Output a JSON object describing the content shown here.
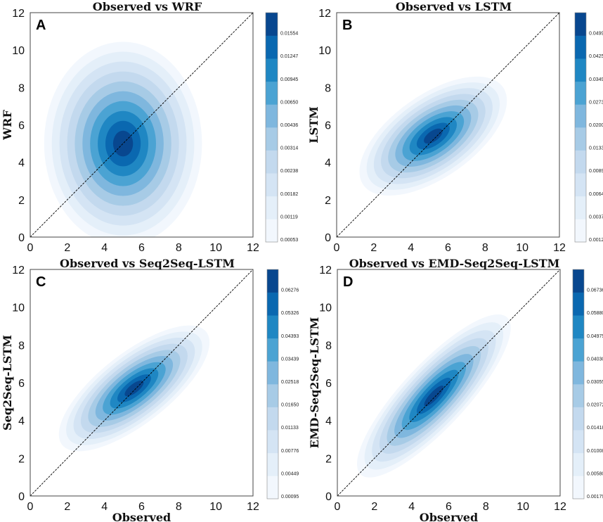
{
  "chart_data": [
    {
      "type": "heatmap",
      "letter": "A",
      "title": "Observed vs WRF",
      "xlabel": "",
      "ylabel": "WRF",
      "xlim": [
        0,
        12
      ],
      "ylim": [
        0,
        12
      ],
      "xticks": [
        "0",
        "2",
        "4",
        "6",
        "8",
        "10",
        "12"
      ],
      "yticks": [
        "0",
        "2",
        "4",
        "6",
        "8",
        "10",
        "12"
      ],
      "reference_line": "y = x",
      "density_center": [
        5.0,
        5.0
      ],
      "density_spread": [
        1.25,
        1.6
      ],
      "density_rotation_deg": 0,
      "colorbar_levels": [
        "0.00053",
        "0.00119",
        "0.00182",
        "0.00238",
        "0.00314",
        "0.00436",
        "0.00650",
        "0.00945",
        "0.01247",
        "0.01554"
      ]
    },
    {
      "type": "heatmap",
      "letter": "B",
      "title": "Observed vs LSTM",
      "xlabel": "",
      "ylabel": "LSTM",
      "xlim": [
        0,
        12
      ],
      "ylim": [
        0,
        12
      ],
      "xticks": [
        "0",
        "2",
        "4",
        "6",
        "8",
        "10",
        "12"
      ],
      "yticks": [
        "0",
        "2",
        "4",
        "6",
        "8",
        "10",
        "12"
      ],
      "reference_line": "y = x",
      "density_center": [
        5.2,
        5.4
      ],
      "density_spread": [
        1.35,
        0.65
      ],
      "density_rotation_deg": 35,
      "colorbar_levels": [
        "0.00124",
        "0.00378",
        "0.00641",
        "0.00896",
        "0.01332",
        "0.02009",
        "0.02735",
        "0.03496",
        "0.04254",
        "0.04990"
      ]
    },
    {
      "type": "heatmap",
      "letter": "C",
      "title": "Observed vs Seq2Seq-LSTM",
      "xlabel": "Observed",
      "ylabel": "Seq2Seq-LSTM",
      "xlim": [
        0,
        12
      ],
      "ylim": [
        0,
        12
      ],
      "xticks": [
        "0",
        "2",
        "4",
        "6",
        "8",
        "10",
        "12"
      ],
      "yticks": [
        "0",
        "2",
        "4",
        "6",
        "8",
        "10",
        "12"
      ],
      "reference_line": "y = x",
      "density_center": [
        5.6,
        5.7
      ],
      "density_spread": [
        1.45,
        0.55
      ],
      "density_rotation_deg": 38,
      "colorbar_levels": [
        "0.00095",
        "0.00449",
        "0.00776",
        "0.01133",
        "0.01650",
        "0.02518",
        "0.03439",
        "0.04393",
        "0.05326",
        "0.06276"
      ]
    },
    {
      "type": "heatmap",
      "letter": "D",
      "title": "Observed vs EMD-Seq2Seq-LSTM",
      "xlabel": "Observed",
      "ylabel": "EMD-Seq2Seq-LSTM",
      "xlim": [
        0,
        12
      ],
      "ylim": [
        0,
        12
      ],
      "xticks": [
        "0",
        "2",
        "4",
        "6",
        "8",
        "10",
        "12"
      ],
      "yticks": [
        "0",
        "2",
        "4",
        "6",
        "8",
        "10",
        "12"
      ],
      "reference_line": "y = x",
      "density_center": [
        5.2,
        5.3
      ],
      "density_spread": [
        1.7,
        0.5
      ],
      "density_rotation_deg": 47,
      "colorbar_levels": [
        "0.00179",
        "0.00580",
        "0.01008",
        "0.01418",
        "0.02072",
        "0.03055",
        "0.04030",
        "0.04975",
        "0.05880",
        "0.06736"
      ]
    }
  ],
  "colors": {
    "scale": [
      "#f2f7fd",
      "#e4eff9",
      "#d4e4f4",
      "#c3d9ee",
      "#a7cbe6",
      "#7fb7de",
      "#4ba3d3",
      "#1f87c3",
      "#0a68b0",
      "#08478f"
    ],
    "diagonal": "#000000",
    "axes": "#444444"
  }
}
